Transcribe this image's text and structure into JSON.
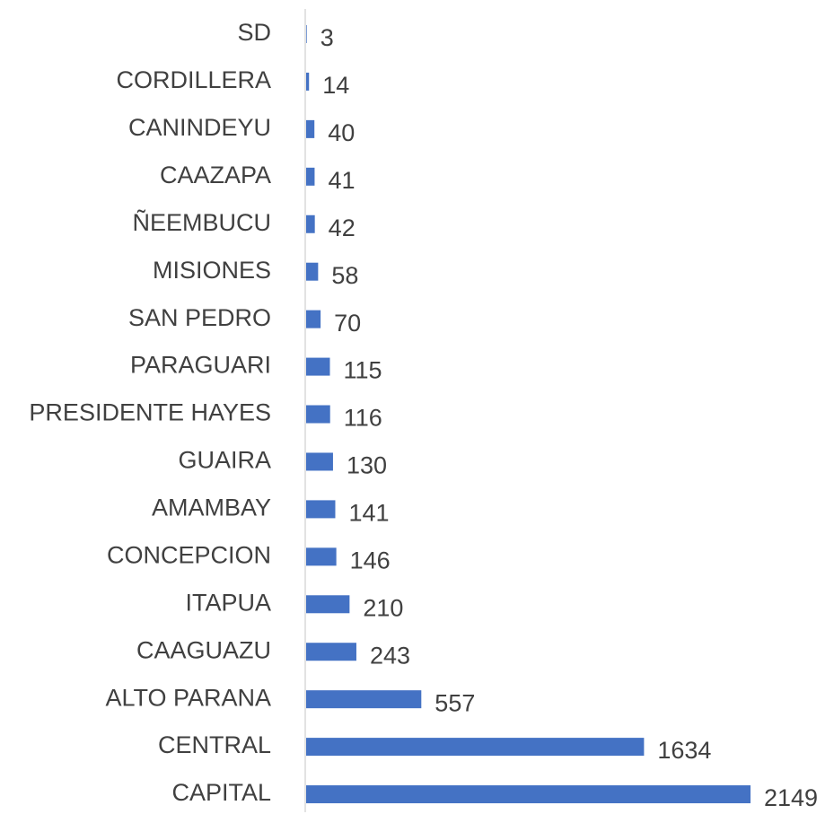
{
  "chart_data": {
    "type": "barh",
    "categories": [
      "SD",
      "CORDILLERA",
      "CANINDEYU",
      "CAAZAPA",
      "ÑEEMBUCU",
      "MISIONES",
      "SAN PEDRO",
      "PARAGUARI",
      "PRESIDENTE HAYES",
      "GUAIRA",
      "AMAMBAY",
      "CONCEPCION",
      "ITAPUA",
      "CAAGUAZU",
      "ALTO PARANA",
      "CENTRAL",
      "CAPITAL"
    ],
    "values": [
      3,
      14,
      40,
      41,
      42,
      58,
      70,
      115,
      116,
      130,
      141,
      146,
      210,
      243,
      557,
      1634,
      2149
    ],
    "color": "#4472c4"
  }
}
